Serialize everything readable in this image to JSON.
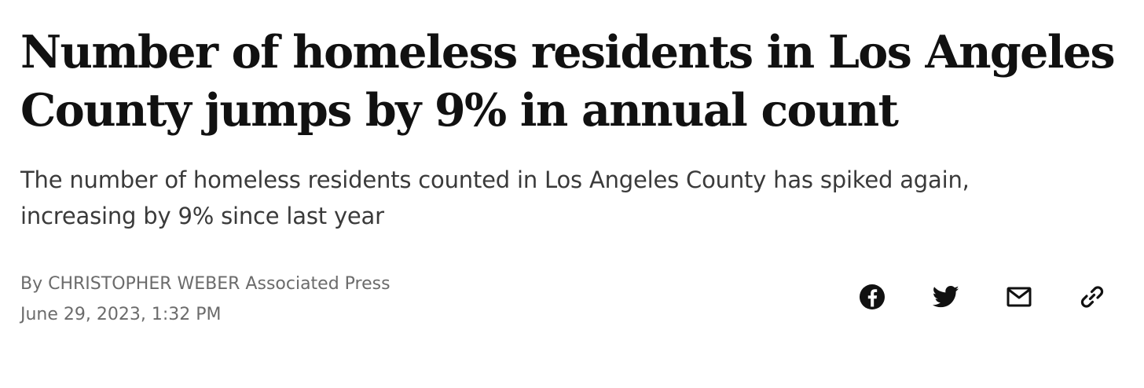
{
  "article": {
    "headline_line1": "Number of homeless residents in Los Angeles",
    "headline_line2": "County jumps by 9% in annual count",
    "dek_line1": "The number of homeless residents counted in Los Angeles County has spiked again,",
    "dek_line2": "increasing by 9% since last year",
    "byline_prefix": "By ",
    "author": "CHRISTOPHER WEBER",
    "publisher": " Associated Press",
    "date": "June 29, 2023, 1:32 PM"
  },
  "share": {
    "icons": [
      "facebook-icon",
      "twitter-icon",
      "email-icon",
      "link-icon"
    ]
  },
  "colors": {
    "headline": "#111111",
    "dek": "#3a3a3a",
    "meta": "#6b6b6b",
    "icon": "#111111"
  }
}
